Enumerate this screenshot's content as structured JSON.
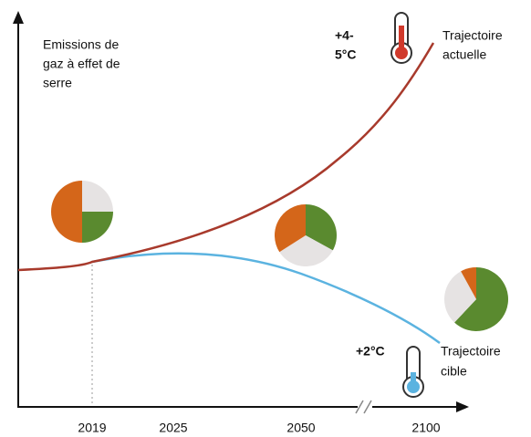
{
  "y_axis_label": [
    "Emissions de",
    "gaz à effet de",
    "serre"
  ],
  "x_labels": [
    "2019",
    "2025",
    "2050",
    "2100"
  ],
  "current": {
    "warming": [
      "+4-",
      "5°C"
    ],
    "label": [
      "Trajectoire",
      "actuelle"
    ]
  },
  "target": {
    "warming": [
      "+2°C"
    ],
    "label": [
      "Trajectoire",
      "cible"
    ]
  },
  "pies": [
    {
      "segments": [
        {
          "color": "#e6e3e3",
          "value": 25
        },
        {
          "color": "#5a8a2f",
          "value": 25
        },
        {
          "color": "#d4661a",
          "value": 50
        }
      ]
    },
    {
      "segments": [
        {
          "color": "#5a8a2f",
          "value": 33
        },
        {
          "color": "#e6e3e3",
          "value": 33
        },
        {
          "color": "#d4661a",
          "value": 34
        }
      ]
    },
    {
      "segments": [
        {
          "color": "#5a8a2f",
          "value": 62
        },
        {
          "color": "#e6e3e3",
          "value": 30
        },
        {
          "color": "#d4661a",
          "value": 8
        }
      ]
    }
  ]
}
